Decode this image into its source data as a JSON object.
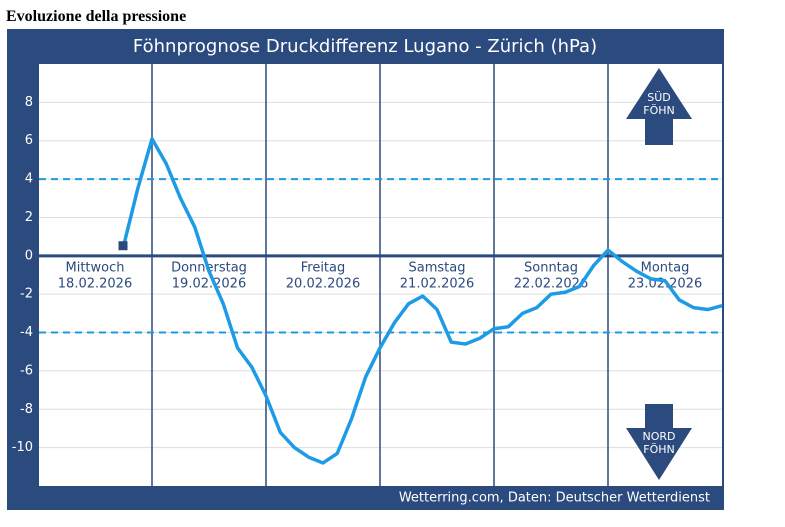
{
  "header": {
    "title": "Evoluzione della pressione"
  },
  "chart_data": {
    "type": "line",
    "title": "Föhnprognose Druckdifferenz Lugano - Zürich (hPa)",
    "days": [
      {
        "name": "Mittwoch",
        "date": "18.02.2026"
      },
      {
        "name": "Donnerstag",
        "date": "19.02.2026"
      },
      {
        "name": "Freitag",
        "date": "20.02.2026"
      },
      {
        "name": "Samstag",
        "date": "21.02.2026"
      },
      {
        "name": "Sonntag",
        "date": "22.02.2026"
      },
      {
        "name": "Montag",
        "date": "23.02.2026"
      }
    ],
    "series": [
      {
        "color": "#1e9be6",
        "values": [
          null,
          null,
          null,
          null,
          null,
          null,
          0.5,
          3.5,
          6.1,
          4.8,
          3,
          1.5,
          -0.8,
          -2.5,
          -4.8,
          -5.8,
          -7.3,
          -9.2,
          -10,
          -10.5,
          -10.8,
          -10.3,
          -8.5,
          -6.3,
          -4.8,
          -3.5,
          -2.5,
          -2.1,
          -2.8,
          -4.5,
          -4.6,
          -4.3,
          -3.8,
          -3.7,
          -3.0,
          -2.7,
          -2.0,
          -1.9,
          -1.6,
          -0.5,
          0.3,
          -0.3,
          -0.8,
          -1.2,
          -1.3,
          -2.3,
          -2.7,
          -2.8,
          -2.6
        ]
      }
    ],
    "ylim": [
      -12,
      10
    ],
    "yticks": [
      8,
      6,
      4,
      2,
      0,
      -2,
      -4,
      -6,
      -8,
      -10
    ],
    "thresholds": [
      4,
      -4
    ],
    "grid": true,
    "arrow_up": [
      "SÜD",
      "FÖHN"
    ],
    "arrow_down": [
      "NORD",
      "FÖHN"
    ],
    "source": "Wetterring.com, Daten: Deutscher Wetterdienst"
  }
}
